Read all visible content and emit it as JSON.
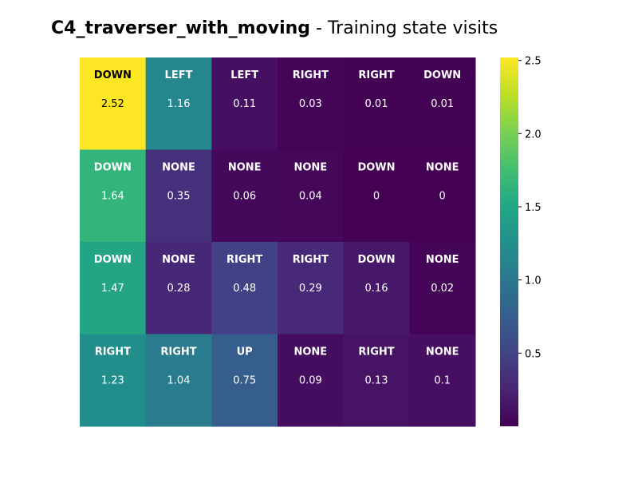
{
  "title": {
    "bold": "C4_traverser_with_moving",
    "rest": " - Training state visits"
  },
  "chart_data": {
    "type": "heatmap",
    "rows": 4,
    "cols": 6,
    "values": [
      [
        2.52,
        1.16,
        0.11,
        0.03,
        0.01,
        0.01
      ],
      [
        1.64,
        0.35,
        0.06,
        0.04,
        0,
        0
      ],
      [
        1.47,
        0.28,
        0.48,
        0.29,
        0.16,
        0.02
      ],
      [
        1.23,
        1.04,
        0.75,
        0.09,
        0.13,
        0.1
      ]
    ],
    "value_labels": [
      [
        "2.52",
        "1.16",
        "0.11",
        "0.03",
        "0.01",
        "0.01"
      ],
      [
        "1.64",
        "0.35",
        "0.06",
        "0.04",
        "0",
        "0"
      ],
      [
        "1.47",
        "0.28",
        "0.48",
        "0.29",
        "0.16",
        "0.02"
      ],
      [
        "1.23",
        "1.04",
        "0.75",
        "0.09",
        "0.13",
        "0.1"
      ]
    ],
    "actions": [
      [
        "DOWN",
        "LEFT",
        "LEFT",
        "RIGHT",
        "RIGHT",
        "DOWN"
      ],
      [
        "DOWN",
        "NONE",
        "NONE",
        "NONE",
        "DOWN",
        "NONE"
      ],
      [
        "DOWN",
        "NONE",
        "RIGHT",
        "RIGHT",
        "DOWN",
        "NONE"
      ],
      [
        "RIGHT",
        "RIGHT",
        "UP",
        "NONE",
        "RIGHT",
        "NONE"
      ]
    ],
    "colormap": "viridis",
    "vmin": 0,
    "vmax": 2.52,
    "colorbar_ticks": [
      0.5,
      1.0,
      1.5,
      2.0,
      2.5
    ],
    "colorbar_tick_labels": [
      "0.5",
      "1.0",
      "1.5",
      "2.0",
      "2.5"
    ],
    "x_tick_labels": [],
    "y_tick_labels": []
  }
}
